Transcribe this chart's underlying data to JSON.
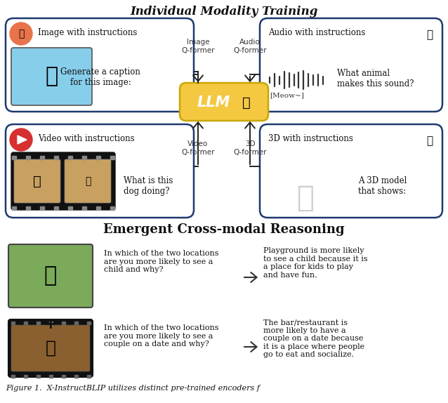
{
  "title_top": "Individual Modality Training",
  "title_mid": "Emergent Cross-modal Reasoning",
  "caption": "Figure 1.  X-InstructBLIP utilizes distinct pre-trained encoders f",
  "bg_color": "#ffffff",
  "box_border_color": "#1e3a6e",
  "llm_box_color": "#f5c842",
  "box_fill_color": "#ffffff",
  "image_box_label": "Image with instructions",
  "image_sub_text": "Generate a caption\nfor this image:",
  "audio_box_label": "Audio with instructions",
  "audio_sub_text": "What animal\nmakes this sound?",
  "meow_text": "[Meow~]",
  "video_box_label": "Video with instructions",
  "video_sub_text": "What is this\ndog doing?",
  "threed_box_label": "3D with instructions",
  "threed_sub_text": "A 3D model\nthat shows:",
  "llm_label": "LLM",
  "img_qformer": "Image\nQ-former",
  "aud_qformer": "Audio\nQ-former",
  "vid_qformer": "Video\nQ-former",
  "thr_qformer": "3D\nQ-former",
  "cross_q1": "In which of the two locations\nare you more likely to see a\nchild and why?",
  "cross_q2": "In which of the two locations\nare you more likely to see a\ncouple on a date and why?",
  "cross_a1": "Playground is more likely\nto see a child because it is\na place for kids to play\nand have fun.",
  "cross_a2": "The bar/restaurant is\nmore likely to have a\ncouple on a date because\nit is a place where people\ngo to eat and socialize.",
  "plus_symbol": "+",
  "icon_image_color": "#e8734a",
  "icon_video_color": "#d63031",
  "waveform_heights": [
    8,
    16,
    10,
    22,
    18,
    14,
    20,
    24,
    16,
    12,
    14,
    10
  ]
}
